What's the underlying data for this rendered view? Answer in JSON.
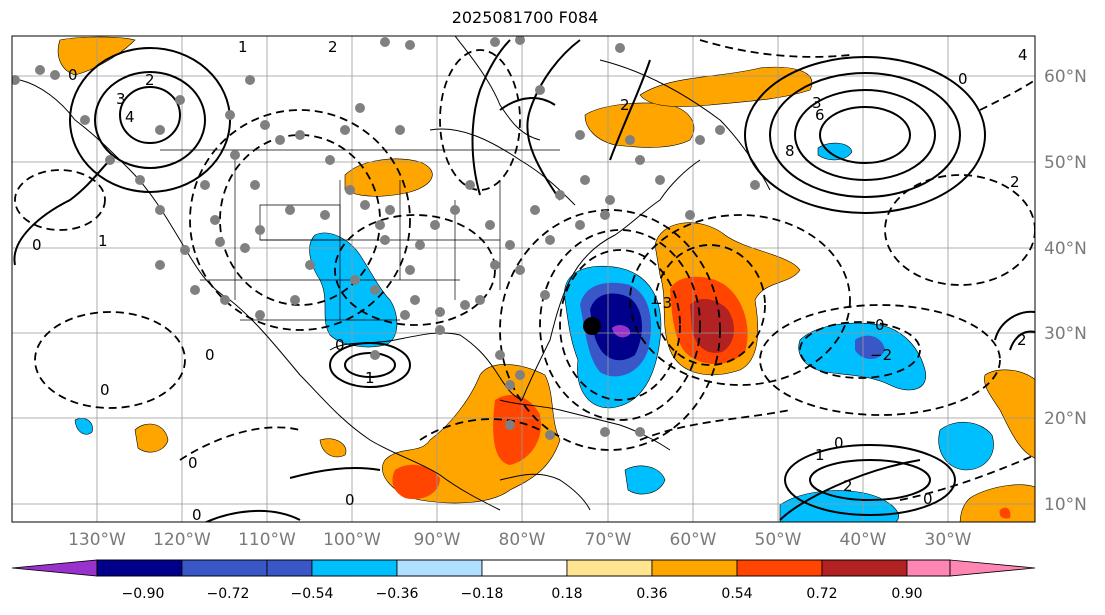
{
  "title": "2025081700 F084",
  "lon_labels": [
    "130°W",
    "120°W",
    "110°W",
    "100°W",
    "90°W",
    "80°W",
    "70°W",
    "60°W",
    "50°W",
    "40°W",
    "30°W"
  ],
  "lat_labels": [
    "60°N",
    "50°N",
    "40°N",
    "30°N",
    "20°N",
    "10°N"
  ],
  "colorbar": {
    "ticks": [
      "−0.90",
      "−0.72",
      "−0.54",
      "−0.36",
      "−0.18",
      "0.18",
      "0.36",
      "0.54",
      "0.72",
      "0.90"
    ],
    "colors": [
      "#9932cc",
      "#00008b",
      "#3a57c8",
      "#00bfff",
      "#b0e0ff",
      "#ffffff",
      "#ffe58f",
      "#ffa500",
      "#ff4500",
      "#b22222",
      "#ff85b3"
    ]
  },
  "contour_labels": [
    "0",
    "1",
    "2",
    "3",
    "4",
    "6",
    "8",
    "−1",
    "−2",
    "−3"
  ],
  "colors": {
    "grid": "#999999",
    "label_gray": "#7a7a7a",
    "station_dot": "#808080",
    "storm_marker": "#000000"
  }
}
